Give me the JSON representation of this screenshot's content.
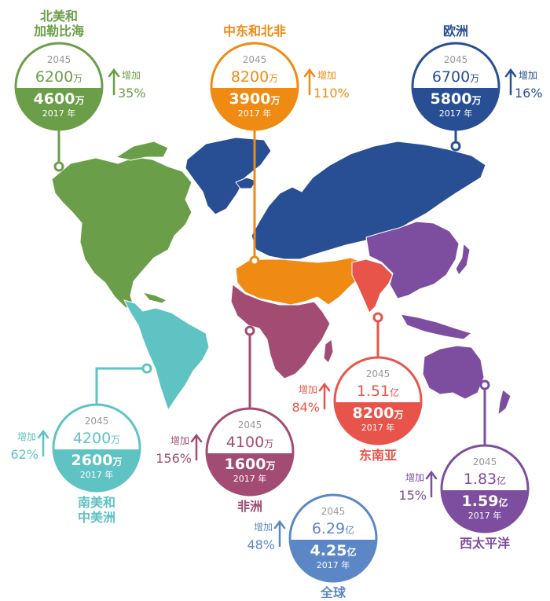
{
  "regions": [
    {
      "id": "north-america",
      "name": [
        "北美和",
        "加勒比海"
      ],
      "color": "#6a9e48",
      "year_future": "2045",
      "value_future": "6200",
      "unit_future": "万",
      "value_current": "4600",
      "unit_current": "万",
      "year_current": "2017 年",
      "increase_label": "增加",
      "increase_pct": "35%"
    },
    {
      "id": "mena",
      "name": [
        "中东和北非"
      ],
      "color": "#ef8a13",
      "year_future": "2045",
      "value_future": "8200",
      "unit_future": "万",
      "value_current": "3900",
      "unit_current": "万",
      "year_current": "2017 年",
      "increase_label": "增加",
      "increase_pct": "110%"
    },
    {
      "id": "europe",
      "name": [
        "欧洲"
      ],
      "color": "#284f94",
      "year_future": "2045",
      "value_future": "6700",
      "unit_future": "万",
      "value_current": "5800",
      "unit_current": "万",
      "year_current": "2017 年",
      "increase_label": "增加",
      "increase_pct": "16%"
    },
    {
      "id": "south-america",
      "name": [
        "南美和",
        "中美洲"
      ],
      "color": "#5fc3c3",
      "year_future": "2045",
      "value_future": "4200",
      "unit_future": "万",
      "value_current": "2600",
      "unit_current": "万",
      "year_current": "2017 年",
      "increase_label": "增加",
      "increase_pct": "62%"
    },
    {
      "id": "africa",
      "name": [
        "非洲"
      ],
      "color": "#a24b73",
      "year_future": "2045",
      "value_future": "4100",
      "unit_future": "万",
      "value_current": "1600",
      "unit_current": "万",
      "year_current": "2017 年",
      "increase_label": "增加",
      "increase_pct": "156%"
    },
    {
      "id": "southeast-asia",
      "name": [
        "东南亚"
      ],
      "color": "#e8544a",
      "year_future": "2045",
      "value_future": "1.51",
      "unit_future": "亿",
      "value_current": "8200",
      "unit_current": "万",
      "year_current": "2017 年",
      "increase_label": "增加",
      "increase_pct": "84%"
    },
    {
      "id": "western-pacific",
      "name": [
        "西太平洋"
      ],
      "color": "#7d4d9f",
      "year_future": "2045",
      "value_future": "1.83",
      "unit_future": "亿",
      "value_current": "1.59",
      "unit_current": "亿",
      "year_current": "2017 年",
      "increase_label": "增加",
      "increase_pct": "15%"
    },
    {
      "id": "global",
      "name": [
        "全球"
      ],
      "color": "#5b87c6",
      "year_future": "2045",
      "value_future": "6.29",
      "unit_future": "亿",
      "value_current": "4.25",
      "unit_current": "亿",
      "year_current": "2017 年",
      "increase_label": "增加",
      "increase_pct": "48%"
    }
  ],
  "icons": {
    "increase": "up-arrow-icon"
  }
}
